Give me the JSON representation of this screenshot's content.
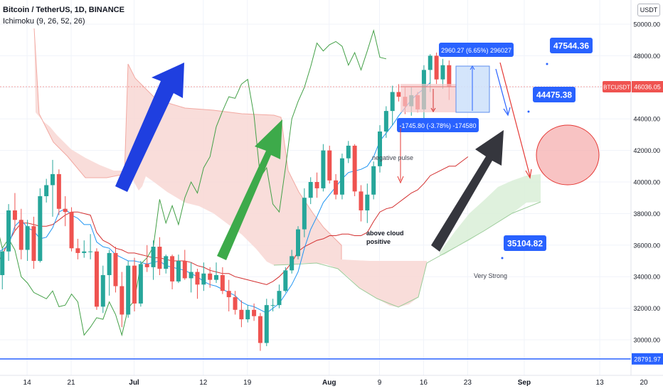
{
  "header": {
    "symbol_line": "Bitcoin / TetherUS, 1D, BINANCE",
    "indicator_line": "Ichimoku (9, 26, 52, 26)",
    "currency_button": "USDT"
  },
  "chart_data": {
    "type": "candlestick",
    "symbol": "BTCUSDT",
    "timeframe": "1D",
    "exchange": "BINANCE",
    "indicator": "Ichimoku (9, 26, 52, 26)",
    "y_axis": {
      "range": [
        28000,
        51000
      ],
      "ticks": [
        30000,
        32000,
        34000,
        36000,
        38000,
        40000,
        42000,
        44000,
        46000,
        48000,
        50000
      ],
      "tick_labels": [
        "30000.00",
        "32000.00",
        "34000.00",
        "36000.00",
        "38000.00",
        "40000.00",
        "42000.00",
        "44000.00",
        "46000.00",
        "48000.00",
        "50000.00"
      ]
    },
    "x_axis": {
      "range_days": [
        -33,
        70
      ],
      "ticks": [
        {
          "label": "14",
          "day": -17
        },
        {
          "label": "21",
          "day": -10
        },
        {
          "label": "Jul",
          "day": 0
        },
        {
          "label": "12",
          "day": 11
        },
        {
          "label": "19",
          "day": 18
        },
        {
          "label": "Aug",
          "day": 31
        },
        {
          "label": "9",
          "day": 39
        },
        {
          "label": "16",
          "day": 46
        },
        {
          "label": "23",
          "day": 53
        },
        {
          "label": "Sep",
          "day": 62
        },
        {
          "label": "13",
          "day": 74
        },
        {
          "label": "20",
          "day": 81
        }
      ]
    },
    "candles": [
      {
        "o": 36500,
        "h": 37200,
        "l": 33800,
        "c": 34100
      },
      {
        "o": 34100,
        "h": 35800,
        "l": 33200,
        "c": 35600
      },
      {
        "o": 35600,
        "h": 38600,
        "l": 35000,
        "c": 38200
      },
      {
        "o": 38200,
        "h": 39300,
        "l": 36900,
        "c": 37600
      },
      {
        "o": 37600,
        "h": 38300,
        "l": 35100,
        "c": 35700
      },
      {
        "o": 35700,
        "h": 37600,
        "l": 35000,
        "c": 37200
      },
      {
        "o": 37200,
        "h": 37800,
        "l": 34500,
        "c": 35000
      },
      {
        "o": 35000,
        "h": 39600,
        "l": 34900,
        "c": 39100
      },
      {
        "o": 39100,
        "h": 40200,
        "l": 38700,
        "c": 39800
      },
      {
        "o": 39800,
        "h": 41400,
        "l": 37800,
        "c": 40500
      },
      {
        "o": 40500,
        "h": 40800,
        "l": 37900,
        "c": 38300
      },
      {
        "o": 38300,
        "h": 39100,
        "l": 37200,
        "c": 38100
      },
      {
        "o": 38100,
        "h": 38400,
        "l": 35600,
        "c": 35800
      },
      {
        "o": 35800,
        "h": 36400,
        "l": 35100,
        "c": 35500
      },
      {
        "o": 35500,
        "h": 36300,
        "l": 35200,
        "c": 35600
      },
      {
        "o": 35600,
        "h": 36700,
        "l": 35100,
        "c": 35600
      },
      {
        "o": 35600,
        "h": 35800,
        "l": 31900,
        "c": 32100
      },
      {
        "o": 32100,
        "h": 34700,
        "l": 31700,
        "c": 34100
      },
      {
        "o": 34100,
        "h": 35700,
        "l": 32800,
        "c": 35500
      },
      {
        "o": 35500,
        "h": 35900,
        "l": 33000,
        "c": 33400
      },
      {
        "o": 33400,
        "h": 34300,
        "l": 30800,
        "c": 31600
      },
      {
        "o": 31600,
        "h": 35000,
        "l": 31400,
        "c": 34700
      },
      {
        "o": 34700,
        "h": 35200,
        "l": 31800,
        "c": 32300
      },
      {
        "o": 32300,
        "h": 35000,
        "l": 32100,
        "c": 34800
      },
      {
        "o": 34800,
        "h": 36000,
        "l": 34300,
        "c": 34600
      },
      {
        "o": 34600,
        "h": 36300,
        "l": 33800,
        "c": 35900
      },
      {
        "o": 35900,
        "h": 36500,
        "l": 34100,
        "c": 34500
      },
      {
        "o": 34500,
        "h": 35400,
        "l": 34200,
        "c": 35300
      },
      {
        "o": 35300,
        "h": 35400,
        "l": 33200,
        "c": 33700
      },
      {
        "o": 33700,
        "h": 35400,
        "l": 33600,
        "c": 35000
      },
      {
        "o": 35000,
        "h": 35700,
        "l": 33800,
        "c": 33900
      },
      {
        "o": 33900,
        "h": 34900,
        "l": 33000,
        "c": 34300
      },
      {
        "o": 34300,
        "h": 34500,
        "l": 32600,
        "c": 33500
      },
      {
        "o": 33500,
        "h": 34900,
        "l": 33100,
        "c": 34200
      },
      {
        "o": 34200,
        "h": 34600,
        "l": 33300,
        "c": 33800
      },
      {
        "o": 33800,
        "h": 34900,
        "l": 33600,
        "c": 34100
      },
      {
        "o": 34100,
        "h": 34600,
        "l": 32900,
        "c": 33100
      },
      {
        "o": 33100,
        "h": 33800,
        "l": 31800,
        "c": 32700
      },
      {
        "o": 32700,
        "h": 33100,
        "l": 31600,
        "c": 31900
      },
      {
        "o": 31900,
        "h": 32500,
        "l": 30800,
        "c": 31300
      },
      {
        "o": 31300,
        "h": 32200,
        "l": 31100,
        "c": 31900
      },
      {
        "o": 31900,
        "h": 32300,
        "l": 31200,
        "c": 31500
      },
      {
        "o": 31500,
        "h": 31700,
        "l": 29300,
        "c": 29800
      },
      {
        "o": 29800,
        "h": 32600,
        "l": 29600,
        "c": 32200
      },
      {
        "o": 32200,
        "h": 32600,
        "l": 31800,
        "c": 32200
      },
      {
        "o": 32200,
        "h": 33500,
        "l": 32000,
        "c": 33100
      },
      {
        "o": 33100,
        "h": 34600,
        "l": 33000,
        "c": 34400
      },
      {
        "o": 34400,
        "h": 35700,
        "l": 34200,
        "c": 35300
      },
      {
        "o": 35300,
        "h": 37200,
        "l": 35100,
        "c": 37000
      },
      {
        "o": 37000,
        "h": 39600,
        "l": 36500,
        "c": 39000
      },
      {
        "o": 39000,
        "h": 40300,
        "l": 38600,
        "c": 40000
      },
      {
        "o": 40000,
        "h": 40600,
        "l": 39000,
        "c": 39600
      },
      {
        "o": 39600,
        "h": 42400,
        "l": 39400,
        "c": 42000
      },
      {
        "o": 42000,
        "h": 42300,
        "l": 39900,
        "c": 40100
      },
      {
        "o": 40100,
        "h": 40500,
        "l": 38900,
        "c": 39200
      },
      {
        "o": 39200,
        "h": 41800,
        "l": 38900,
        "c": 41500
      },
      {
        "o": 41500,
        "h": 42600,
        "l": 41200,
        "c": 42300
      },
      {
        "o": 42300,
        "h": 42400,
        "l": 39100,
        "c": 39400
      },
      {
        "o": 39400,
        "h": 39800,
        "l": 37500,
        "c": 38200
      },
      {
        "o": 38200,
        "h": 39900,
        "l": 37400,
        "c": 39200
      },
      {
        "o": 39200,
        "h": 41300,
        "l": 38900,
        "c": 41000
      },
      {
        "o": 41000,
        "h": 43600,
        "l": 40600,
        "c": 43200
      },
      {
        "o": 43200,
        "h": 44800,
        "l": 42800,
        "c": 44500
      },
      {
        "o": 44500,
        "h": 46100,
        "l": 43600,
        "c": 45700
      },
      {
        "o": 45700,
        "h": 46200,
        "l": 45100,
        "c": 45400
      },
      {
        "o": 45400,
        "h": 46000,
        "l": 44300,
        "c": 44800
      },
      {
        "o": 44800,
        "h": 46000,
        "l": 44200,
        "c": 45500
      },
      {
        "o": 45500,
        "h": 45700,
        "l": 44400,
        "c": 44600
      },
      {
        "o": 44600,
        "h": 47400,
        "l": 43900,
        "c": 47100
      },
      {
        "o": 47100,
        "h": 48100,
        "l": 45700,
        "c": 48000
      },
      {
        "o": 48000,
        "h": 48200,
        "l": 46200,
        "c": 46500
      },
      {
        "o": 46500,
        "h": 47800,
        "l": 45900,
        "c": 47400
      },
      {
        "o": 47400,
        "h": 47700,
        "l": 45200,
        "c": 46036
      }
    ],
    "ichimoku": {
      "tenkan_values": [
        35500,
        35700,
        36000,
        37200,
        37600,
        37100,
        36900,
        36400,
        36500,
        37100,
        38100,
        38300,
        37900,
        37700,
        37300,
        37300,
        36200,
        35900,
        35800,
        35400,
        35200,
        35000,
        35000,
        34900,
        34800,
        34900,
        35000,
        34700,
        34600,
        34500,
        34400,
        34200,
        34000,
        33700,
        33500,
        33400,
        33200,
        33000,
        32800,
        32400,
        32200,
        32100,
        31900,
        31700,
        32000,
        32300,
        32900,
        33500,
        34300,
        35800,
        37000,
        37800,
        38700,
        39200,
        39700,
        40200,
        40600,
        40700,
        40800,
        41000,
        41600,
        42600,
        43100,
        43600,
        44200,
        44700,
        45200,
        45600,
        45900,
        46300
      ],
      "kijun_values": [
        34700,
        35400,
        36200,
        36900,
        37400,
        37400,
        37300,
        37200,
        37200,
        37300,
        37600,
        37900,
        38100,
        38100,
        38000,
        37900,
        36800,
        36300,
        36100,
        35800,
        35700,
        35500,
        35500,
        35400,
        35300,
        35200,
        35200,
        35100,
        35000,
        35000,
        35000,
        34900,
        34700,
        34600,
        34400,
        34300,
        34200,
        34200,
        34000,
        33900,
        33800,
        33700,
        33600,
        33500,
        33700,
        34000,
        34400,
        34900,
        35600,
        35900,
        36100,
        36300,
        36400,
        36600,
        36600,
        36700,
        36700,
        36600,
        36600,
        36800,
        37500,
        38100,
        38300,
        38400,
        38700,
        39000,
        39300,
        39500,
        39900,
        40400,
        40600,
        40800,
        41000,
        41000,
        41300,
        41600
      ],
      "chikou_values": [
        37500,
        35800,
        36400,
        35700,
        34000,
        33600,
        33000,
        32800,
        32600,
        33100,
        32100,
        32200,
        32900,
        32400,
        30300,
        30800,
        31400,
        31300,
        32400,
        31600,
        30300,
        32000,
        32500,
        34800,
        35200,
        35900,
        38900,
        37400,
        38500,
        37300,
        39000,
        40000,
        39300,
        40900,
        41600,
        43500,
        44500,
        45400,
        45300,
        46200,
        46500,
        44200,
        40300,
        40900,
        38600,
        38100,
        40900,
        44000,
        45100,
        46000,
        47300,
        48800,
        48300,
        48700,
        48900,
        48600,
        47400,
        48200,
        47100,
        48300,
        49600,
        47900,
        47800
      ]
    },
    "price_lines": {
      "last_price": 46036.05,
      "horizontal_support": 28791.97
    },
    "annotations": {
      "price_boxes": [
        "47544.36",
        "44475.38",
        "35104.82"
      ],
      "short_position_label": "-1745.80 (-3.78%) -174580",
      "long_position_label": "2960.27 (6.65%) 296027",
      "texts": [
        "negative pulse",
        "above cloud\npositive",
        "Very Strong"
      ],
      "last_price_symbol": "BTCUSDT",
      "last_price_label": "46036.05",
      "support_label": "28791.97"
    },
    "colors": {
      "up": "#26a69a",
      "down": "#ef5350",
      "tenkan": "#2196f3",
      "kijun": "#d32f2f",
      "chikou": "#43a047",
      "cloud_bear": "#f8d7d3",
      "cloud_bull": "#dcefd9",
      "support": "#2962ff",
      "arrow_blue": "#1f3fe0",
      "arrow_green": "#3daa4a",
      "arrow_dark": "#35363d",
      "label_blue": "#2962ff"
    }
  }
}
